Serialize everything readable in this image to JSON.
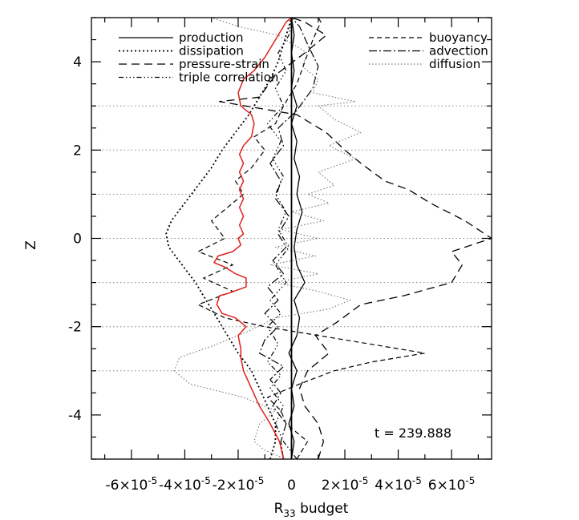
{
  "chart_data": {
    "type": "line",
    "title": "",
    "xlabel": {
      "main": "R",
      "sub": "33",
      "rest": " budget"
    },
    "ylabel": "Z",
    "xlim": [
      -7.5e-05,
      7.5e-05
    ],
    "ylim": [
      -5,
      5
    ],
    "xticks": [
      {
        "value": -6e-05,
        "label_base": "-6×10",
        "label_exp": "-5"
      },
      {
        "value": -4e-05,
        "label_base": "-4×10",
        "label_exp": "-5"
      },
      {
        "value": -2e-05,
        "label_base": "-2×10",
        "label_exp": "-5"
      },
      {
        "value": 0,
        "label_base": "0",
        "label_exp": ""
      },
      {
        "value": 2e-05,
        "label_base": "2×10",
        "label_exp": "-5"
      },
      {
        "value": 4e-05,
        "label_base": "4×10",
        "label_exp": "-5"
      },
      {
        "value": 6e-05,
        "label_base": "6×10",
        "label_exp": "-5"
      }
    ],
    "yticks": [
      -4,
      -2,
      0,
      2,
      4
    ],
    "gridlines_y": [
      -3,
      -2,
      -1,
      0,
      1,
      2,
      3
    ],
    "annotation": "t = 239.888",
    "legend_left": [
      "production",
      "dissipation",
      "pressure-strain",
      "triple correlation"
    ],
    "legend_right": [
      "buoyancy",
      "advection",
      "diffusion"
    ],
    "series": [
      {
        "name": "production",
        "color": "#000000",
        "dash": "",
        "width": 1.3,
        "points": [
          [
            0,
            -5
          ],
          [
            1e-06,
            -4.6
          ],
          [
            -1e-06,
            -4.2
          ],
          [
            1e-06,
            -3.8
          ],
          [
            0,
            -3.4
          ],
          [
            2e-06,
            -3.0
          ],
          [
            -1e-06,
            -2.6
          ],
          [
            2e-06,
            -2.2
          ],
          [
            3e-06,
            -1.8
          ],
          [
            1e-06,
            -1.4
          ],
          [
            5e-06,
            -1.0
          ],
          [
            2e-06,
            -0.6
          ],
          [
            1e-06,
            -0.2
          ],
          [
            2e-06,
            0.2
          ],
          [
            4e-06,
            0.6
          ],
          [
            2e-06,
            1.0
          ],
          [
            3e-06,
            1.4
          ],
          [
            1e-06,
            1.8
          ],
          [
            2e-06,
            2.2
          ],
          [
            0,
            2.6
          ],
          [
            2e-06,
            3.0
          ],
          [
            0,
            3.4
          ],
          [
            1e-06,
            3.8
          ],
          [
            0,
            4.2
          ],
          [
            1e-06,
            4.6
          ],
          [
            0,
            5
          ]
        ]
      },
      {
        "name": "dissipation",
        "color": "#000000",
        "dash": "2,3",
        "width": 1.8,
        "points": [
          [
            -8e-06,
            -5
          ],
          [
            -6e-06,
            -4.6
          ],
          [
            -6e-06,
            -4.2
          ],
          [
            -9e-06,
            -3.8
          ],
          [
            -1.2e-05,
            -3.4
          ],
          [
            -1.5e-05,
            -3.0
          ],
          [
            -2e-05,
            -2.6
          ],
          [
            -2.4e-05,
            -2.2
          ],
          [
            -2.8e-05,
            -1.8
          ],
          [
            -3.2e-05,
            -1.4
          ],
          [
            -3.6e-05,
            -1.0
          ],
          [
            -4.1e-05,
            -0.6
          ],
          [
            -4.6e-05,
            -0.2
          ],
          [
            -4.7e-05,
            0.1
          ],
          [
            -4.5e-05,
            0.4
          ],
          [
            -4e-05,
            0.8
          ],
          [
            -3.5e-05,
            1.2
          ],
          [
            -3e-05,
            1.6
          ],
          [
            -2.6e-05,
            2.0
          ],
          [
            -2.1e-05,
            2.4
          ],
          [
            -1.6e-05,
            2.8
          ],
          [
            -1.2e-05,
            3.2
          ],
          [
            -8e-06,
            3.6
          ],
          [
            -5e-06,
            4.0
          ],
          [
            -3e-06,
            4.4
          ],
          [
            -1e-06,
            4.8
          ],
          [
            0,
            5
          ]
        ]
      },
      {
        "name": "pressure-strain",
        "color": "#000000",
        "dash": "10,6",
        "width": 1.3,
        "points": [
          [
            1e-05,
            -5
          ],
          [
            1.2e-05,
            -4.6
          ],
          [
            1e-05,
            -4.2
          ],
          [
            5e-06,
            -3.8
          ],
          [
            3e-06,
            -3.4
          ],
          [
            6e-06,
            -3.0
          ],
          [
            1.4e-05,
            -2.6
          ],
          [
            9e-06,
            -2.2
          ],
          [
            1.7e-05,
            -1.9
          ],
          [
            2.6e-05,
            -1.5
          ],
          [
            4.2e-05,
            -1.3
          ],
          [
            6e-05,
            -1.0
          ],
          [
            6.4e-05,
            -0.6
          ],
          [
            6e-05,
            -0.3
          ],
          [
            7.5e-05,
            0
          ],
          [
            6.5e-05,
            0.4
          ],
          [
            5.2e-05,
            0.8
          ],
          [
            4.4e-05,
            1.1
          ],
          [
            3.5e-05,
            1.3
          ],
          [
            2.6e-05,
            1.7
          ],
          [
            2e-05,
            2.0
          ],
          [
            1.3e-05,
            2.4
          ],
          [
            2e-06,
            2.8
          ],
          [
            -2.7e-05,
            3.1
          ],
          [
            -1.2e-05,
            3.2
          ],
          [
            -6e-06,
            3.7
          ],
          [
            5e-06,
            4.2
          ],
          [
            1.3e-05,
            4.6
          ],
          [
            5e-06,
            4.9
          ],
          [
            0,
            5
          ]
        ]
      },
      {
        "name": "triple correlation",
        "color": "#000000",
        "dash": "6,3,1.5,3,1.5,3,1.5,3",
        "width": 1.2,
        "points": [
          [
            2e-06,
            -5
          ],
          [
            -3e-06,
            -4.6
          ],
          [
            -6e-06,
            -4.2
          ],
          [
            -3e-06,
            -3.8
          ],
          [
            -8e-06,
            -3.4
          ],
          [
            -4e-06,
            -3.1
          ],
          [
            -9e-06,
            -2.8
          ],
          [
            -5e-06,
            -2.4
          ],
          [
            -9e-06,
            -2.0
          ],
          [
            -4e-06,
            -1.7
          ],
          [
            -8e-06,
            -1.4
          ],
          [
            -2e-06,
            -1.0
          ],
          [
            -6e-06,
            -0.6
          ],
          [
            -1e-06,
            -0.2
          ],
          [
            -5e-06,
            0.2
          ],
          [
            -2e-06,
            0.6
          ],
          [
            -6e-06,
            1.0
          ],
          [
            -3e-06,
            1.4
          ],
          [
            -7e-06,
            1.8
          ],
          [
            -4e-06,
            2.2
          ],
          [
            -9e-06,
            2.6
          ],
          [
            -3e-06,
            3.0
          ],
          [
            -6e-06,
            3.4
          ],
          [
            -2e-06,
            3.8
          ],
          [
            -5e-06,
            4.2
          ],
          [
            -1e-06,
            4.6
          ],
          [
            0,
            5
          ]
        ]
      },
      {
        "name": "buoyancy",
        "color": "#000000",
        "dash": "6,4",
        "width": 1.2,
        "points": [
          [
            2e-06,
            -5
          ],
          [
            6e-06,
            -4.6
          ],
          [
            -2e-06,
            -4.2
          ],
          [
            -4e-06,
            -3.9
          ],
          [
            -9e-06,
            -3.6
          ],
          [
            3e-06,
            -3.3
          ],
          [
            1.6e-05,
            -3.0
          ],
          [
            3e-05,
            -2.8
          ],
          [
            5e-05,
            -2.6
          ],
          [
            3e-05,
            -2.4
          ],
          [
            1e-05,
            -2.2
          ],
          [
            -1e-05,
            -2.0
          ],
          [
            -2.5e-05,
            -1.8
          ],
          [
            -3.5e-05,
            -1.5
          ],
          [
            -2.2e-05,
            -1.2
          ],
          [
            -3.3e-05,
            -0.9
          ],
          [
            -2.2e-05,
            -0.6
          ],
          [
            -3.5e-05,
            -0.3
          ],
          [
            -2.5e-05,
            0
          ],
          [
            -3e-05,
            0.4
          ],
          [
            -2.4e-05,
            0.7
          ],
          [
            -1.8e-05,
            1.0
          ],
          [
            -2.1e-05,
            1.3
          ],
          [
            -1.5e-05,
            1.6
          ],
          [
            -1e-05,
            2.0
          ],
          [
            -1.4e-05,
            2.3
          ],
          [
            -6e-06,
            2.6
          ],
          [
            -3e-06,
            3.0
          ],
          [
            2e-06,
            3.5
          ],
          [
            5e-06,
            4.0
          ],
          [
            8e-06,
            4.5
          ],
          [
            1.1e-05,
            4.9
          ],
          [
            1e-05,
            5
          ]
        ]
      },
      {
        "name": "advection",
        "color": "#000000",
        "dash": "10,3,2,3",
        "width": 1.2,
        "points": [
          [
            -3e-06,
            -5
          ],
          [
            -4e-06,
            -4.6
          ],
          [
            -2e-06,
            -4.2
          ],
          [
            -7e-06,
            -3.8
          ],
          [
            -4e-06,
            -3.5
          ],
          [
            -8e-06,
            -3.2
          ],
          [
            -3e-06,
            -2.9
          ],
          [
            -1.2e-05,
            -2.6
          ],
          [
            -1e-05,
            -2.3
          ],
          [
            -5e-06,
            -2.0
          ],
          [
            -1e-05,
            -1.7
          ],
          [
            -5e-06,
            -1.4
          ],
          [
            -9e-06,
            -1.1
          ],
          [
            -3e-06,
            -0.8
          ],
          [
            -7e-06,
            -0.5
          ],
          [
            -2e-06,
            -0.2
          ],
          [
            -5e-06,
            0.1
          ],
          [
            -1e-06,
            0.5
          ],
          [
            -6e-06,
            0.9
          ],
          [
            -4e-06,
            1.3
          ],
          [
            -8e-06,
            1.7
          ],
          [
            -3e-06,
            2.1
          ],
          [
            -5e-06,
            2.5
          ],
          [
            2e-06,
            2.9
          ],
          [
            8e-06,
            3.4
          ],
          [
            1e-05,
            3.9
          ],
          [
            6e-06,
            4.4
          ],
          [
            3e-06,
            4.8
          ],
          [
            0,
            5
          ]
        ]
      },
      {
        "name": "diffusion",
        "color": "#777777",
        "dash": "1.5,2.5",
        "width": 1.1,
        "points": [
          [
            -2e-06,
            -5
          ],
          [
            -1e-05,
            -4.8
          ],
          [
            -1.4e-05,
            -4.6
          ],
          [
            -1.2e-05,
            -4.2
          ],
          [
            -6e-06,
            -3.9
          ],
          [
            -1.8e-05,
            -3.6
          ],
          [
            -3.8e-05,
            -3.3
          ],
          [
            -4.4e-05,
            -3.0
          ],
          [
            -4.2e-05,
            -2.7
          ],
          [
            -2.8e-05,
            -2.4
          ],
          [
            -1.6e-05,
            -2.1
          ],
          [
            -6e-06,
            -1.8
          ],
          [
            1.4e-05,
            -1.6
          ],
          [
            2.2e-05,
            -1.4
          ],
          [
            1e-05,
            -1.2
          ],
          [
            -6e-06,
            -1.0
          ],
          [
            1e-05,
            -0.8
          ],
          [
            -8e-06,
            -0.6
          ],
          [
            9e-06,
            -0.4
          ],
          [
            -6e-06,
            -0.2
          ],
          [
            1e-05,
            0
          ],
          [
            -4e-06,
            0.2
          ],
          [
            1.2e-05,
            0.4
          ],
          [
            0,
            0.6
          ],
          [
            1.4e-05,
            0.8
          ],
          [
            6e-06,
            1.0
          ],
          [
            1.6e-05,
            1.2
          ],
          [
            1e-05,
            1.5
          ],
          [
            2.4e-05,
            1.8
          ],
          [
            1.4e-05,
            2.1
          ],
          [
            2.6e-05,
            2.4
          ],
          [
            1.6e-05,
            2.7
          ],
          [
            1e-05,
            3.0
          ],
          [
            2.4e-05,
            3.1
          ],
          [
            8e-06,
            3.3
          ],
          [
            1e-05,
            3.6
          ],
          [
            4e-06,
            3.9
          ],
          [
            6e-06,
            4.2
          ],
          [
            -5e-06,
            4.6
          ],
          [
            -2e-05,
            4.8
          ],
          [
            -3e-05,
            5
          ]
        ]
      },
      {
        "name": "",
        "color": "#e0201c",
        "dash": "",
        "width": 1.5,
        "points": [
          [
            -3e-06,
            -5
          ],
          [
            -4.5e-06,
            -4.6
          ],
          [
            -8e-06,
            -4.2
          ],
          [
            -1.2e-05,
            -3.8
          ],
          [
            -1.5e-05,
            -3.4
          ],
          [
            -1.8e-05,
            -3.0
          ],
          [
            -1.9e-05,
            -2.7
          ],
          [
            -1.9e-05,
            -2.5
          ],
          [
            -2e-05,
            -2.2
          ],
          [
            -1.7e-05,
            -2.0
          ],
          [
            -2.1e-05,
            -1.8
          ],
          [
            -2.6e-05,
            -1.7
          ],
          [
            -2.8e-05,
            -1.5
          ],
          [
            -2.7e-05,
            -1.3
          ],
          [
            -2.4e-05,
            -1.25
          ],
          [
            -1.7e-05,
            -1.1
          ],
          [
            -1.7e-05,
            -0.9
          ],
          [
            -2.1e-05,
            -0.8
          ],
          [
            -2.5e-05,
            -0.65
          ],
          [
            -2.9e-05,
            -0.55
          ],
          [
            -2.75e-05,
            -0.4
          ],
          [
            -2.2e-05,
            -0.3
          ],
          [
            -1.9e-05,
            -0.15
          ],
          [
            -2e-05,
            0
          ],
          [
            -1.8e-05,
            0.1
          ],
          [
            -1.95e-05,
            0.3
          ],
          [
            -1.8e-05,
            0.5
          ],
          [
            -1.95e-05,
            0.7
          ],
          [
            -1.8e-05,
            0.9
          ],
          [
            -1.95e-05,
            1.1
          ],
          [
            -1.8e-05,
            1.3
          ],
          [
            -1.95e-05,
            1.5
          ],
          [
            -1.8e-05,
            1.7
          ],
          [
            -1.95e-05,
            1.9
          ],
          [
            -1.8e-05,
            2.1
          ],
          [
            -1.5e-05,
            2.3
          ],
          [
            -1.4e-05,
            2.6
          ],
          [
            -1.5e-05,
            2.8
          ],
          [
            -1.9e-05,
            3.0
          ],
          [
            -2e-05,
            3.3
          ],
          [
            -1.8e-05,
            3.6
          ],
          [
            -1.4e-05,
            3.8
          ],
          [
            -1e-05,
            4.1
          ],
          [
            -8e-06,
            4.3
          ],
          [
            -6e-06,
            4.5
          ],
          [
            -4e-06,
            4.7
          ],
          [
            -2e-06,
            4.9
          ],
          [
            0,
            5
          ]
        ]
      }
    ]
  }
}
